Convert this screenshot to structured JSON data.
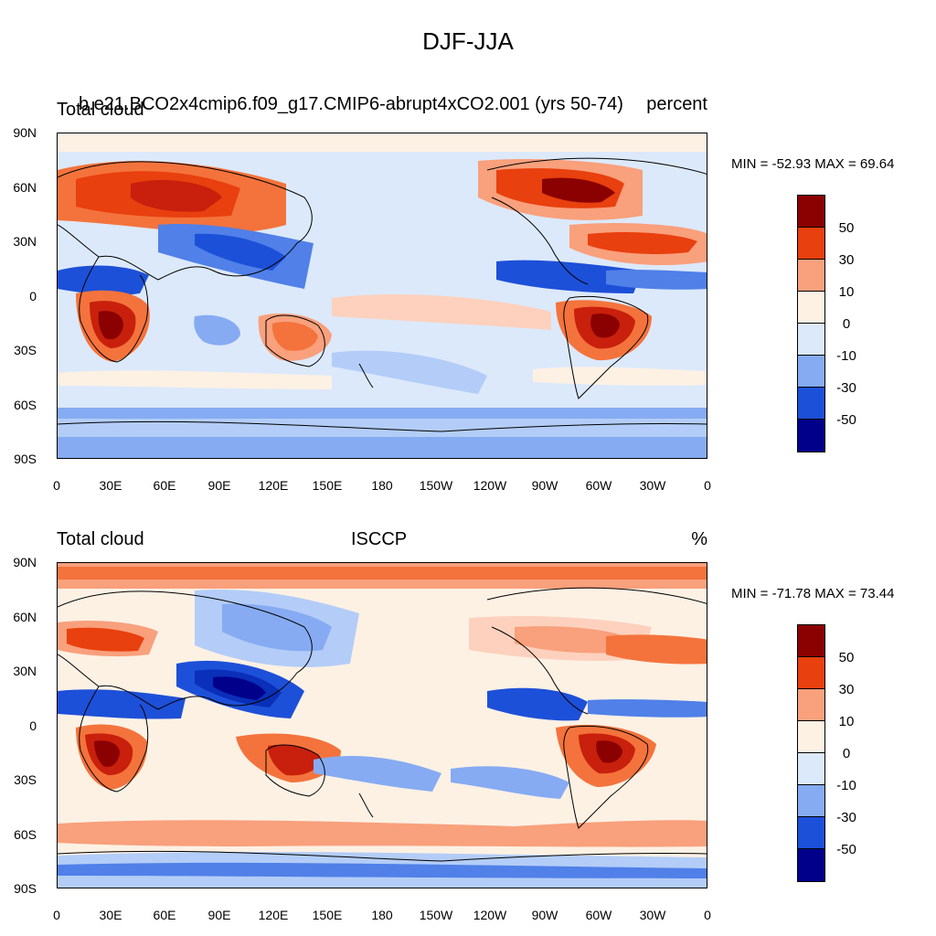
{
  "figure_title": "DJF-JJA",
  "colorbar_levels": [
    "50",
    "30",
    "10",
    "0",
    "-10",
    "-30",
    "-50"
  ],
  "colorbar_colors": [
    "#8b0000",
    "#c8200c",
    "#e8400e",
    "#f4733c",
    "#f9a07c",
    "#fdd1bd",
    "#fdf1e4",
    "#dce9fb",
    "#b3cdf8",
    "#86abf2",
    "#5080e8",
    "#1d50d8",
    "#0a2fb8",
    "#00008b"
  ],
  "lat_labels": [
    "90N",
    "60N",
    "30N",
    "0",
    "30S",
    "60S",
    "90S"
  ],
  "lon_labels": [
    "0",
    "30E",
    "60E",
    "90E",
    "120E",
    "150E",
    "180",
    "150W",
    "120W",
    "90W",
    "60W",
    "30W",
    "0"
  ],
  "panels": [
    {
      "left_title": "Total cloud",
      "center_title": "b.e21.BCO2x4cmip6.f09_g17.CMIP6-abrupt4xCO2.001 (yrs 50-74)",
      "right_title": "percent",
      "min_max": "MIN = -52.93 MAX =  69.64"
    },
    {
      "left_title": "Total cloud",
      "center_title": "ISCCP",
      "right_title": "%",
      "min_max": "MIN = -71.78 MAX =  73.44"
    }
  ]
}
